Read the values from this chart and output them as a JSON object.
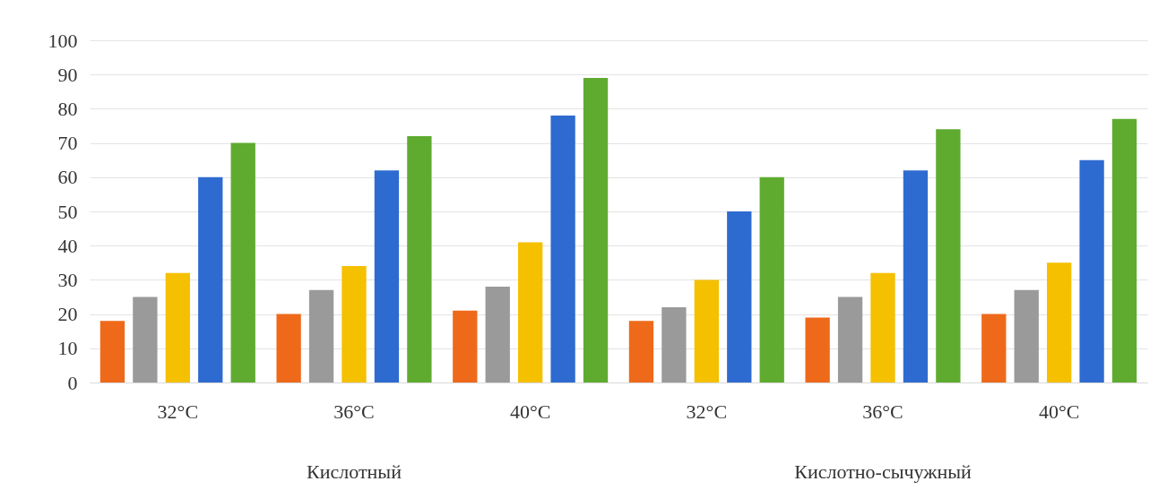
{
  "chart_data": {
    "type": "bar",
    "categories": [
      "32°C",
      "36°C",
      "40°C",
      "32°C",
      "36°C",
      "40°C"
    ],
    "series": [
      {
        "color": "#ee6a1a",
        "values": [
          18,
          20,
          21,
          18,
          19,
          20
        ]
      },
      {
        "color": "#9a9a9a",
        "values": [
          25,
          27,
          28,
          22,
          25,
          27
        ]
      },
      {
        "color": "#f5c000",
        "values": [
          32,
          34,
          41,
          30,
          32,
          35
        ]
      },
      {
        "color": "#2e6bd0",
        "values": [
          60,
          62,
          78,
          50,
          62,
          65
        ]
      },
      {
        "color": "#5fab30",
        "values": [
          70,
          72,
          89,
          60,
          74,
          77
        ]
      }
    ],
    "annotations": [
      "Кислотный",
      "Кислотно-сычужный"
    ],
    "ylim": [
      0,
      100
    ],
    "yticks": [
      0,
      10,
      20,
      30,
      40,
      50,
      60,
      70,
      80,
      90,
      100
    ],
    "grid": "y",
    "legend": false
  }
}
